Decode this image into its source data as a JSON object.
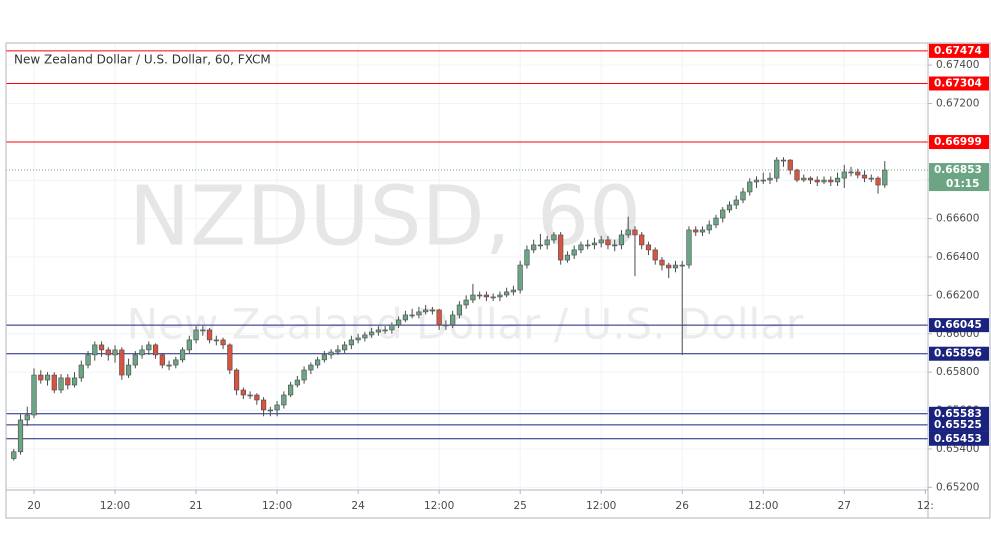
{
  "chart_data": {
    "type": "candlestick",
    "title": "New Zealand Dollar / U.S. Dollar, 60, FXCM",
    "watermark": "NZDUSD, 60",
    "watermark_subtitle": "New Zealand Dollar / U.S. Dollar",
    "up_color": "#6ba583",
    "down_color": "#d75442",
    "wick_color": "#4b4b4b",
    "grid": true,
    "xlim": [
      -4.15,
      132.4
    ],
    "ylim": [
      0.65186,
      0.67515
    ],
    "xticks": [
      {
        "value": 0,
        "label": "20"
      },
      {
        "value": 12,
        "label": "12:00"
      },
      {
        "value": 24,
        "label": "21"
      },
      {
        "value": 36,
        "label": "12:00"
      },
      {
        "value": 48,
        "label": "24"
      },
      {
        "value": 60,
        "label": "12:00"
      },
      {
        "value": 72,
        "label": "25"
      },
      {
        "value": 84,
        "label": "12:00"
      },
      {
        "value": 96,
        "label": "26"
      },
      {
        "value": 108,
        "label": "12:00"
      },
      {
        "value": 120,
        "label": "27"
      },
      {
        "value": 132,
        "label": "12:"
      }
    ],
    "yticks": [
      {
        "value": 0.652,
        "label": "0.65200"
      },
      {
        "value": 0.654,
        "label": "0.65400"
      },
      {
        "value": 0.656,
        "label": "0.65600"
      },
      {
        "value": 0.658,
        "label": "0.65800"
      },
      {
        "value": 0.66,
        "label": "0.66000"
      },
      {
        "value": 0.662,
        "label": "0.66200"
      },
      {
        "value": 0.664,
        "label": "0.66400"
      },
      {
        "value": 0.666,
        "label": "0.66600"
      },
      {
        "value": 0.668,
        "label": "0.66800"
      },
      {
        "value": 0.67,
        "label": "0.67000"
      },
      {
        "value": 0.672,
        "label": "0.67200"
      },
      {
        "value": 0.674,
        "label": "0.67400"
      }
    ],
    "levels": [
      {
        "value": 0.67474,
        "color": "#ff0000"
      },
      {
        "value": 0.67304,
        "color": "#ff0000"
      },
      {
        "value": 0.66999,
        "color": "#ff0000"
      },
      {
        "value": 0.66045,
        "color": "#1a237e"
      },
      {
        "value": 0.65896,
        "color": "#1a237e"
      },
      {
        "value": 0.65583,
        "color": "#1a237e"
      },
      {
        "value": 0.65525,
        "color": "#1a237e"
      },
      {
        "value": 0.65453,
        "color": "#1a237e"
      }
    ],
    "last_price": 0.66853,
    "time_to_close": "01:15",
    "x": [
      -3,
      -2,
      -1,
      0,
      1,
      2,
      3,
      4,
      5,
      6,
      7,
      8,
      9,
      10,
      11,
      12,
      13,
      14,
      15,
      16,
      17,
      18,
      19,
      20,
      21,
      22,
      23,
      24,
      25,
      26,
      27,
      28,
      29,
      30,
      31,
      32,
      33,
      34,
      35,
      36,
      37,
      38,
      39,
      40,
      41,
      42,
      43,
      44,
      45,
      46,
      47,
      48,
      49,
      50,
      51,
      52,
      53,
      54,
      55,
      56,
      57,
      58,
      59,
      60,
      61,
      62,
      63,
      64,
      65,
      66,
      67,
      68,
      69,
      70,
      71,
      72,
      73,
      74,
      75,
      76,
      77,
      78,
      79,
      80,
      81,
      82,
      83,
      84,
      85,
      86,
      87,
      88,
      89,
      90,
      91,
      92,
      93,
      94,
      95,
      96,
      97,
      98,
      99,
      100,
      101,
      102,
      103,
      104,
      105,
      106,
      107,
      108,
      109,
      110,
      111,
      112,
      113,
      114,
      115,
      116,
      117,
      118,
      119,
      120,
      121,
      122,
      123,
      124,
      125,
      126
    ],
    "open": [
      0.6535,
      0.65385,
      0.65551,
      0.65577,
      0.65785,
      0.65759,
      0.65785,
      0.65707,
      0.6577,
      0.65733,
      0.6577,
      0.65837,
      0.6589,
      0.65942,
      0.65916,
      0.6589,
      0.65916,
      0.65785,
      0.65837,
      0.6589,
      0.65916,
      0.65942,
      0.6589,
      0.65837,
      0.65837,
      0.65864,
      0.65916,
      0.65968,
      0.6602,
      0.6602,
      0.65968,
      0.65968,
      0.65942,
      0.65811,
      0.65707,
      0.65681,
      0.65681,
      0.65655,
      0.65603,
      0.65603,
      0.65629,
      0.65681,
      0.65733,
      0.65759,
      0.65811,
      0.65837,
      0.65864,
      0.6589,
      0.65905,
      0.65916,
      0.65942,
      0.65968,
      0.65978,
      0.65994,
      0.66009,
      0.6602,
      0.6602,
      0.66046,
      0.66072,
      0.66098,
      0.66098,
      0.66114,
      0.66124,
      0.66124,
      0.66046,
      0.66046,
      0.66098,
      0.6615,
      0.66176,
      0.66202,
      0.66202,
      0.66192,
      0.66192,
      0.66202,
      0.66218,
      0.66228,
      0.66358,
      0.66437,
      0.66463,
      0.66463,
      0.66489,
      0.66515,
      0.66384,
      0.6641,
      0.66437,
      0.66463,
      0.66463,
      0.66473,
      0.66489,
      0.66463,
      0.66463,
      0.66515,
      0.66541,
      0.66515,
      0.66463,
      0.66437,
      0.66384,
      0.66358,
      0.66343,
      0.66358,
      0.66358,
      0.66541,
      0.6653,
      0.66541,
      0.66567,
      0.66603,
      0.66645,
      0.66671,
      0.66697,
      0.66739,
      0.66791,
      0.66801,
      0.66801,
      0.66811,
      0.66905,
      0.66905,
      0.66853,
      0.66801,
      0.66811,
      0.66801,
      0.66791,
      0.66801,
      0.66791,
      0.66811,
      0.66843,
      0.66843,
      0.66827,
      0.66811,
      0.66811,
      0.66775
    ],
    "high": [
      0.654,
      0.6558,
      0.6562,
      0.6582,
      0.6581,
      0.658,
      0.658,
      0.6579,
      0.6579,
      0.658,
      0.6586,
      0.6591,
      0.6596,
      0.6596,
      0.6593,
      0.6594,
      0.6593,
      0.6587,
      0.6591,
      0.6594,
      0.6596,
      0.6595,
      0.659,
      0.6586,
      0.6588,
      0.6593,
      0.6599,
      0.6604,
      0.6604,
      0.6603,
      0.6599,
      0.6598,
      0.6595,
      0.6582,
      0.6572,
      0.657,
      0.6569,
      0.6567,
      0.6562,
      0.6565,
      0.657,
      0.6575,
      0.6578,
      0.6583,
      0.6585,
      0.6588,
      0.6591,
      0.6592,
      0.6594,
      0.6596,
      0.6599,
      0.66,
      0.6601,
      0.6603,
      0.6604,
      0.6604,
      0.6606,
      0.6609,
      0.6612,
      0.6613,
      0.6614,
      0.6615,
      0.6614,
      0.6613,
      0.6607,
      0.6612,
      0.6617,
      0.662,
      0.6626,
      0.6622,
      0.6622,
      0.6621,
      0.6622,
      0.6624,
      0.6625,
      0.6638,
      0.6646,
      0.6649,
      0.6652,
      0.6651,
      0.6653,
      0.6653,
      0.6643,
      0.6646,
      0.6648,
      0.6649,
      0.665,
      0.6651,
      0.6651,
      0.6649,
      0.6654,
      0.6661,
      0.6656,
      0.6653,
      0.6648,
      0.6645,
      0.664,
      0.6637,
      0.6638,
      0.6638,
      0.6656,
      0.6656,
      0.6656,
      0.6659,
      0.6662,
      0.6666,
      0.6669,
      0.6672,
      0.6676,
      0.6681,
      0.6682,
      0.6684,
      0.6684,
      0.6692,
      0.6692,
      0.6691,
      0.6686,
      0.6683,
      0.6682,
      0.6682,
      0.6682,
      0.6682,
      0.6684,
      0.6688,
      0.6687,
      0.6686,
      0.6685,
      0.6683,
      0.6682,
      0.669
    ],
    "low": [
      0.6534,
      0.6537,
      0.6552,
      0.6556,
      0.6574,
      0.6573,
      0.6569,
      0.6569,
      0.6571,
      0.6572,
      0.6575,
      0.6582,
      0.6586,
      0.6588,
      0.6586,
      0.6585,
      0.6576,
      0.6577,
      0.6582,
      0.6587,
      0.6589,
      0.6587,
      0.6582,
      0.6581,
      0.6582,
      0.6585,
      0.659,
      0.6595,
      0.6599,
      0.6595,
      0.6594,
      0.6592,
      0.6579,
      0.6568,
      0.6566,
      0.6566,
      0.6563,
      0.6557,
      0.6557,
      0.6557,
      0.6561,
      0.6567,
      0.6572,
      0.6574,
      0.6579,
      0.6582,
      0.6585,
      0.6587,
      0.6589,
      0.659,
      0.6592,
      0.6595,
      0.6596,
      0.6598,
      0.6599,
      0.66,
      0.66,
      0.6603,
      0.6606,
      0.6608,
      0.6608,
      0.661,
      0.661,
      0.6602,
      0.6602,
      0.6603,
      0.6608,
      0.6613,
      0.6616,
      0.6618,
      0.6617,
      0.6617,
      0.6617,
      0.6619,
      0.662,
      0.6621,
      0.6634,
      0.6642,
      0.6644,
      0.6644,
      0.6647,
      0.6636,
      0.6637,
      0.6639,
      0.6642,
      0.6644,
      0.6644,
      0.6645,
      0.6644,
      0.6643,
      0.6644,
      0.665,
      0.663,
      0.6644,
      0.6641,
      0.6636,
      0.6633,
      0.6629,
      0.6632,
      0.6589,
      0.6634,
      0.6651,
      0.6651,
      0.6652,
      0.6655,
      0.6658,
      0.6663,
      0.6665,
      0.6668,
      0.6672,
      0.6676,
      0.6678,
      0.6678,
      0.6679,
      0.6687,
      0.6683,
      0.6679,
      0.6679,
      0.6678,
      0.6677,
      0.6678,
      0.6677,
      0.6677,
      0.6676,
      0.6682,
      0.6681,
      0.6679,
      0.6679,
      0.6673,
      0.6676
    ],
    "close": [
      0.65385,
      0.65551,
      0.65577,
      0.65785,
      0.65759,
      0.65785,
      0.65707,
      0.6577,
      0.65733,
      0.6577,
      0.65837,
      0.6589,
      0.65942,
      0.65916,
      0.6589,
      0.65916,
      0.65785,
      0.65837,
      0.6589,
      0.65916,
      0.65942,
      0.6589,
      0.65837,
      0.65837,
      0.65864,
      0.65916,
      0.65968,
      0.6602,
      0.6602,
      0.65968,
      0.65968,
      0.65942,
      0.65811,
      0.65707,
      0.65681,
      0.65681,
      0.65655,
      0.65603,
      0.65603,
      0.65629,
      0.65681,
      0.65733,
      0.65759,
      0.65811,
      0.65837,
      0.65864,
      0.6589,
      0.65905,
      0.65916,
      0.65942,
      0.65968,
      0.65978,
      0.65994,
      0.66009,
      0.6602,
      0.6602,
      0.66046,
      0.66072,
      0.66098,
      0.66098,
      0.66114,
      0.66124,
      0.66124,
      0.66046,
      0.66046,
      0.66098,
      0.6615,
      0.66176,
      0.66202,
      0.66202,
      0.66192,
      0.66192,
      0.66202,
      0.66218,
      0.66228,
      0.66358,
      0.66437,
      0.66463,
      0.66463,
      0.66489,
      0.66515,
      0.66384,
      0.6641,
      0.66437,
      0.66463,
      0.66463,
      0.66473,
      0.66489,
      0.66463,
      0.66463,
      0.66515,
      0.66541,
      0.66515,
      0.66463,
      0.66437,
      0.66384,
      0.66358,
      0.66343,
      0.66358,
      0.66358,
      0.66541,
      0.6653,
      0.66541,
      0.66567,
      0.66603,
      0.66645,
      0.66671,
      0.66697,
      0.66739,
      0.66791,
      0.66801,
      0.66801,
      0.66811,
      0.66905,
      0.66905,
      0.66853,
      0.66801,
      0.66811,
      0.66801,
      0.66791,
      0.66801,
      0.66791,
      0.66811,
      0.66843,
      0.66843,
      0.66827,
      0.66811,
      0.66811,
      0.66775,
      0.66853
    ]
  }
}
